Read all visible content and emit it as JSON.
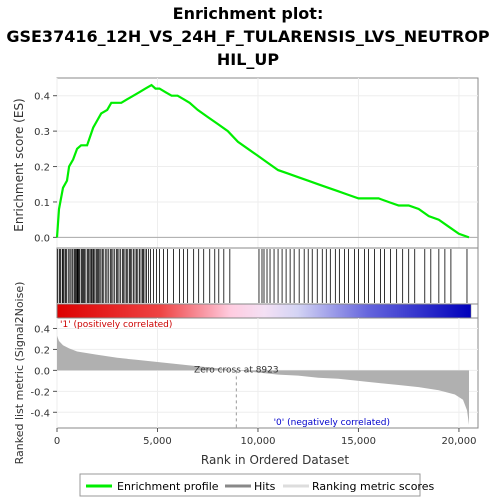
{
  "chart_data": {
    "type": "line",
    "title_lines": [
      "Enrichment plot:",
      "GSE37416_12H_VS_24H_F_TULARENSIS_LVS_NEUTROP",
      "HIL_UP"
    ],
    "top_panel": {
      "ylabel": "Enrichment score (ES)",
      "ylim": [
        -0.03,
        0.45
      ],
      "yticks": [
        "0.0",
        "0.1",
        "0.2",
        "0.3",
        "0.4"
      ],
      "series": [
        {
          "name": "Enrichment profile",
          "color": "#00ee00",
          "x": [
            0,
            100,
            300,
            500,
            600,
            800,
            1000,
            1200,
            1500,
            1800,
            2000,
            2200,
            2500,
            2700,
            2900,
            3200,
            3500,
            3800,
            4100,
            4400,
            4700,
            4900,
            5100,
            5400,
            5700,
            6000,
            6300,
            6600,
            7000,
            7500,
            8000,
            8500,
            9000,
            9500,
            10000,
            10500,
            11000,
            11500,
            12000,
            12500,
            13000,
            13500,
            14000,
            14500,
            15000,
            15500,
            16000,
            16500,
            17000,
            17500,
            18000,
            18500,
            19000,
            19500,
            20000,
            20500
          ],
          "y": [
            0.0,
            0.08,
            0.14,
            0.16,
            0.2,
            0.22,
            0.25,
            0.26,
            0.26,
            0.31,
            0.33,
            0.35,
            0.36,
            0.38,
            0.38,
            0.38,
            0.39,
            0.4,
            0.41,
            0.42,
            0.43,
            0.42,
            0.42,
            0.41,
            0.4,
            0.4,
            0.39,
            0.38,
            0.36,
            0.34,
            0.32,
            0.3,
            0.27,
            0.25,
            0.23,
            0.21,
            0.19,
            0.18,
            0.17,
            0.16,
            0.15,
            0.14,
            0.13,
            0.12,
            0.11,
            0.11,
            0.11,
            0.1,
            0.09,
            0.09,
            0.08,
            0.06,
            0.05,
            0.03,
            0.01,
            0.0
          ]
        }
      ]
    },
    "hits_panel": {
      "name": "Hits",
      "positions": [
        40,
        120,
        180,
        260,
        300,
        350,
        420,
        480,
        560,
        640,
        700,
        780,
        850,
        900,
        950,
        1000,
        1040,
        1080,
        1120,
        1200,
        1250,
        1300,
        1350,
        1400,
        1500,
        1550,
        1600,
        1680,
        1720,
        1780,
        1820,
        1880,
        1950,
        2000,
        2050,
        2100,
        2180,
        2250,
        2300,
        2400,
        2480,
        2550,
        2650,
        2700,
        2780,
        2850,
        2950,
        3000,
        3080,
        3150,
        3250,
        3300,
        3380,
        3450,
        3520,
        3600,
        3650,
        3720,
        3800,
        3880,
        3950,
        4020,
        4100,
        4180,
        4250,
        4300,
        4380,
        4450,
        4550,
        4650,
        4800,
        4950,
        5100,
        5300,
        5500,
        5800,
        6100,
        6300,
        6500,
        6800,
        7050,
        7300,
        7600,
        7850,
        8050,
        8300,
        8600,
        10050,
        10200,
        10300,
        10450,
        10600,
        10800,
        11000,
        11200,
        11400,
        11600,
        11800,
        12050,
        12300,
        12500,
        12700,
        12950,
        13200,
        13400,
        13600,
        13850,
        14050,
        14300,
        14500,
        14800,
        15000,
        15300,
        15500,
        15800,
        16100,
        16300,
        16600,
        16900,
        17200,
        17500,
        17800,
        18300,
        18600,
        19000,
        19300,
        19600,
        20400
      ]
    },
    "metric_panel": {
      "name": "Ranking metric scores",
      "ylabel": "Ranked list metric (Signal2Noise)",
      "ylim": [
        -0.55,
        0.5
      ],
      "yticks": [
        "0.4",
        "0.2",
        "0.0",
        "-0.2",
        "-0.4"
      ],
      "x": [
        0,
        100,
        300,
        600,
        1000,
        2000,
        3000,
        4000,
        5000,
        6000,
        7000,
        8000,
        8923,
        10000,
        11000,
        12000,
        13000,
        14000,
        15000,
        16000,
        17000,
        18000,
        19000,
        19800,
        20200,
        20400,
        20500
      ],
      "y": [
        0.33,
        0.28,
        0.24,
        0.21,
        0.18,
        0.15,
        0.12,
        0.1,
        0.08,
        0.06,
        0.04,
        0.02,
        0.0,
        -0.02,
        -0.04,
        -0.05,
        -0.07,
        -0.08,
        -0.1,
        -0.12,
        -0.14,
        -0.16,
        -0.19,
        -0.23,
        -0.28,
        -0.38,
        -0.52
      ],
      "zero_cross_label": "Zero cross at 8923",
      "zero_cross_x": 8923,
      "pos_label": "'1' (positively correlated)",
      "neg_label": "'0' (negatively correlated)",
      "pos_color": "#cc0000",
      "neg_color": "#0000cc"
    },
    "xlabel": "Rank in Ordered Dataset",
    "xlim": [
      0,
      20600
    ],
    "xticks": [
      "0",
      "5,000",
      "10,000",
      "15,000",
      "20,000"
    ],
    "xtick_values": [
      0,
      5000,
      10000,
      15000,
      20000
    ],
    "legend": {
      "placement": "bottom",
      "items": [
        "Enrichment profile",
        "Hits",
        "Ranking metric scores"
      ]
    }
  }
}
